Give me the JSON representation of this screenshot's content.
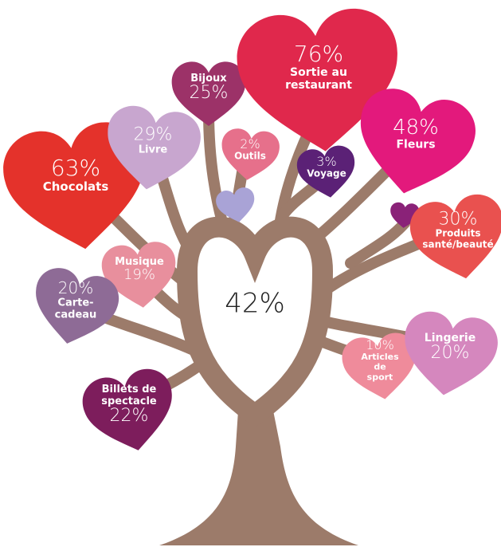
{
  "center_value": "42%",
  "hearts": [
    {
      "value": "63%",
      "label": [
        "Chocolats"
      ]
    },
    {
      "value": "29%",
      "label": [
        "Livre"
      ]
    },
    {
      "value": "25%",
      "label": [
        "Bijoux"
      ]
    },
    {
      "value": "2%",
      "label": [
        "Outils"
      ]
    },
    {
      "value": "76%",
      "label": [
        "Sortie au",
        "restaurant"
      ]
    },
    {
      "value": "3%",
      "label": [
        "Voyage"
      ]
    },
    {
      "value": "48%",
      "label": [
        "Fleurs"
      ]
    },
    {
      "value": "30%",
      "label": [
        "Produits",
        "santé/beauté"
      ]
    },
    {
      "value": "19%",
      "label": [
        "Musique"
      ]
    },
    {
      "value": "20%",
      "label": [
        "Carte-",
        "cadeau"
      ]
    },
    {
      "value": "22%",
      "label": [
        "Billets de",
        "spectacle"
      ]
    },
    {
      "value": "10%",
      "label": [
        "Articles",
        "de",
        "sport"
      ]
    },
    {
      "value": "20%",
      "label": [
        "Lingerie"
      ]
    }
  ]
}
